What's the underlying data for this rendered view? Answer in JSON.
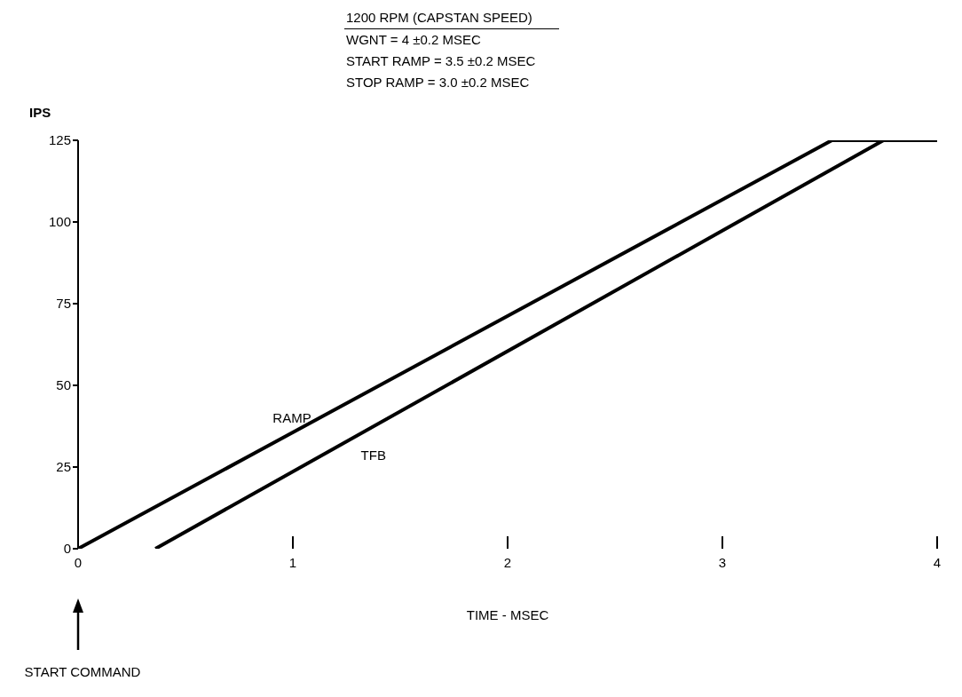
{
  "chart_data": {
    "type": "line",
    "xlabel": "TIME - MSEC",
    "ylabel": "IPS",
    "annotations": [
      "1200 RPM (CAPSTAN SPEED)",
      "WGNT = 4 ±0.2 MSEC",
      "START RAMP = 3.5 ±0.2 MSEC",
      "STOP RAMP = 3.0 ±0.2 MSEC",
      "START COMMAND"
    ],
    "series": [
      {
        "name": "RAMP",
        "color": "#000000",
        "x": [
          0,
          3.51,
          4
        ],
        "values": [
          0,
          125,
          125
        ]
      },
      {
        "name": "TFB",
        "color": "#000000",
        "x": [
          0.36,
          3.75,
          4
        ],
        "values": [
          0,
          125,
          125
        ]
      }
    ],
    "xlim": [
      0,
      4
    ],
    "xticks": [
      0,
      1,
      2,
      3,
      4
    ],
    "ylim": [
      0,
      125
    ],
    "yticks": [
      0,
      25,
      50,
      75,
      100,
      125
    ],
    "grid": false
  }
}
